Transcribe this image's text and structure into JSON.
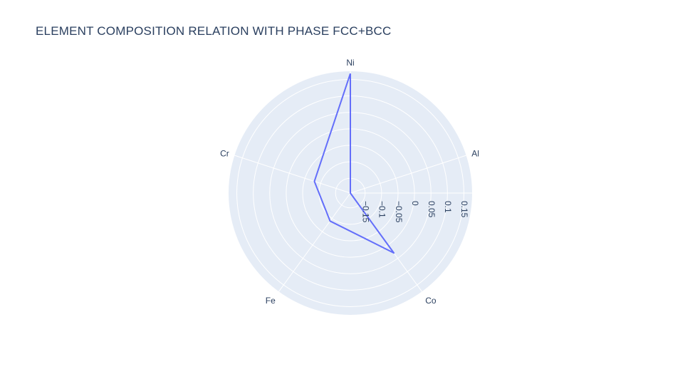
{
  "chart_data": {
    "type": "radar",
    "title": "ELEMENT COMPOSITION RELATION WITH PHASE FCC+BCC",
    "categories": [
      "Ni",
      "Al",
      "Co",
      "Fe",
      "Cr"
    ],
    "series": [
      {
        "values": [
          0.168,
          -0.195,
          0.03,
          -0.09,
          -0.08
        ]
      }
    ],
    "radial_range": [
      -0.195,
      0.175
    ],
    "radial_ticks": [
      -0.15,
      -0.1,
      -0.05,
      0,
      0.05,
      0.1,
      0.15
    ],
    "radial_tick_labels": [
      "−0.15",
      "−0.1",
      "−0.05",
      "0",
      "0.05",
      "0.1",
      "0.15"
    ],
    "grid": true,
    "colors": {
      "line": "#636efa",
      "polar_bg": "#e5ecf6",
      "grid": "#ffffff",
      "text": "#2a3f5f"
    }
  }
}
